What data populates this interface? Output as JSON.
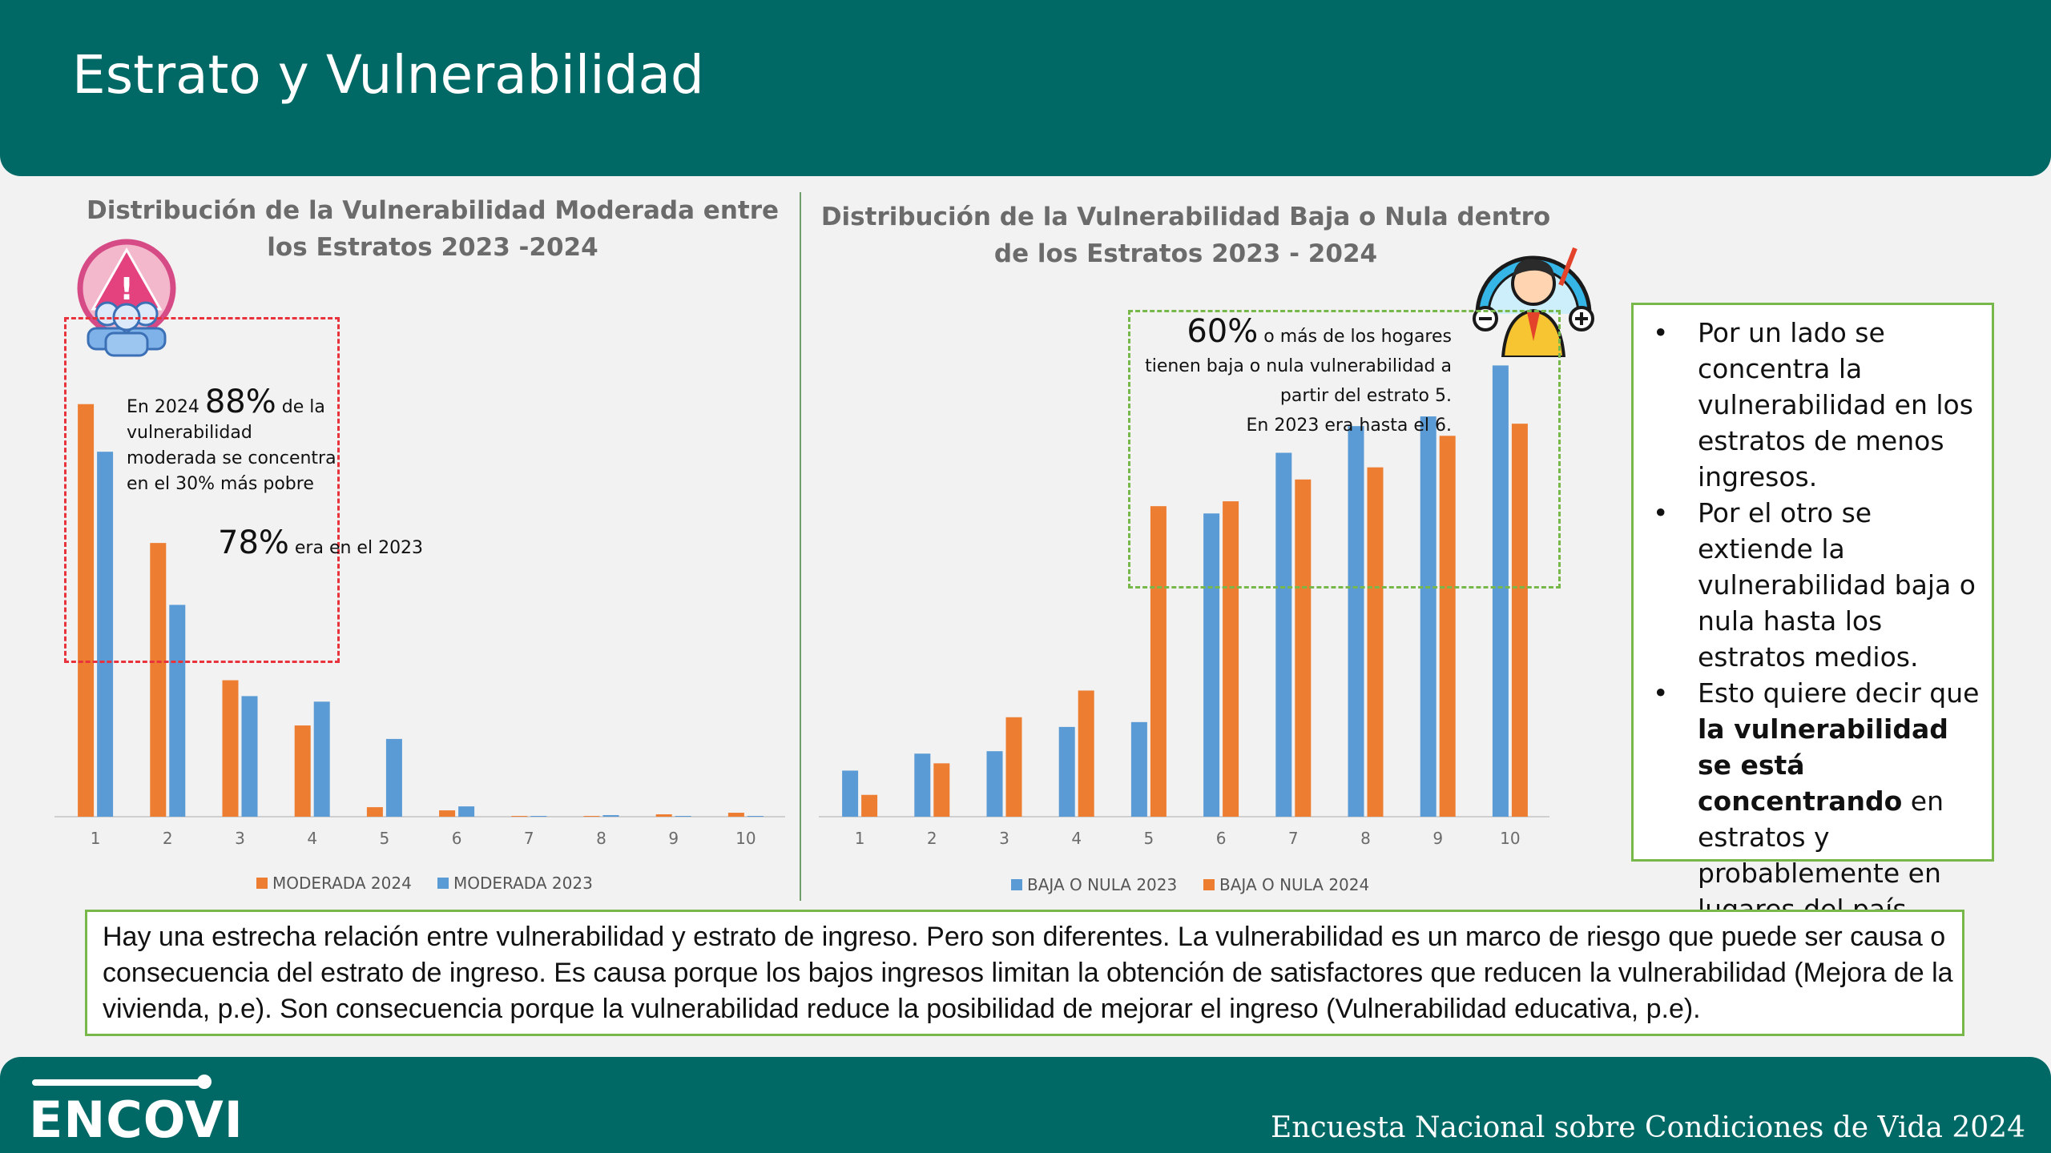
{
  "header": {
    "title": "Estrato y Vulnerabilidad"
  },
  "chart_left": {
    "title": "Distribución de la Vulnerabilidad Moderada entre los Estratos 2023 -2024"
  },
  "chart_right": {
    "title": "Distribución de la Vulnerabilidad Baja o Nula dentro de los Estratos 2023 - 2024"
  },
  "callout_left": {
    "pre": "En 2024 ",
    "big": "88%",
    "post1": " de la",
    "line2": "vulnerabilidad",
    "line3": "moderada se concentra",
    "line4": "en el 30% más pobre",
    "big2": "78%",
    "post2": " era en el 2023"
  },
  "callout_right": {
    "big": "60%",
    "post1": " o más  de los hogares",
    "line2": "tienen baja o nula vulnerabilidad a",
    "line3": "partir del estrato 5.",
    "line4": "En 2023 era hasta el 6."
  },
  "bullets": {
    "b1": "Por un lado se concentra la vulnerabilidad en los estratos de menos ingresos.",
    "b2": "Por el otro se extiende la vulnerabilidad baja o nula hasta los estratos medios.",
    "b3_pre": "Esto quiere decir que ",
    "b3_bold": "la vulnerabilidad se está concentrando",
    "b3_post": " en estratos y probablemente en lugares del país."
  },
  "bottom_note": "Hay una estrecha relación entre vulnerabilidad y estrato de ingreso. Pero son diferentes. La vulnerabilidad es un marco de riesgo que puede ser causa o consecuencia del estrato de ingreso. Es causa porque los bajos ingresos limitan la obtención de satisfactores que reducen la vulnerabilidad (Mejora de la vivienda, p.e). Son consecuencia porque la vulnerabilidad reduce la posibilidad de mejorar el ingreso (Vulnerabilidad educativa, p.e).",
  "footer": {
    "brand": "ENCOVI",
    "subtitle": "Encuesta Nacional sobre Condiciones de Vida 2024"
  },
  "colors": {
    "orange": "#ed7d31",
    "blue": "#5b9bd5",
    "teal": "#006966",
    "green": "#78b84a"
  },
  "chart_data": [
    {
      "type": "bar",
      "title": "Distribución de la Vulnerabilidad Moderada entre los Estratos 2023 -2024",
      "categories": [
        "1",
        "2",
        "3",
        "4",
        "5",
        "6",
        "7",
        "8",
        "9",
        "10"
      ],
      "series": [
        {
          "name": "MODERADA 2024",
          "color": "#ed7d31",
          "values": [
            52.0,
            34.5,
            17.2,
            11.5,
            1.2,
            0.8,
            0.1,
            0.1,
            0.3,
            0.5
          ]
        },
        {
          "name": "MODERADA 2023",
          "color": "#5b9bd5",
          "values": [
            46.0,
            26.7,
            15.2,
            14.5,
            9.8,
            1.3,
            0.1,
            0.2,
            0.1,
            0.1
          ]
        }
      ],
      "ylim": [
        0,
        55
      ],
      "xlabel": "",
      "ylabel": "",
      "legend": "bottom"
    },
    {
      "type": "bar",
      "title": "Distribución de la Vulnerabilidad Baja o Nula dentro de los Estratos 2023 - 2024",
      "categories": [
        "1",
        "2",
        "3",
        "4",
        "5",
        "6",
        "7",
        "8",
        "9",
        "10"
      ],
      "series": [
        {
          "name": "BAJA O NULA 2023",
          "color": "#5b9bd5",
          "values": [
            9.5,
            13.0,
            13.5,
            18.5,
            19.5,
            62.5,
            75.0,
            80.5,
            82.5,
            93.0
          ]
        },
        {
          "name": "BAJA O NULA 2024",
          "color": "#ed7d31",
          "values": [
            4.5,
            11.0,
            20.5,
            26.0,
            64.0,
            65.0,
            69.5,
            72.0,
            78.5,
            81.0
          ]
        }
      ],
      "ylim": [
        0,
        100
      ],
      "xlabel": "",
      "ylabel": "",
      "legend": "bottom"
    }
  ]
}
